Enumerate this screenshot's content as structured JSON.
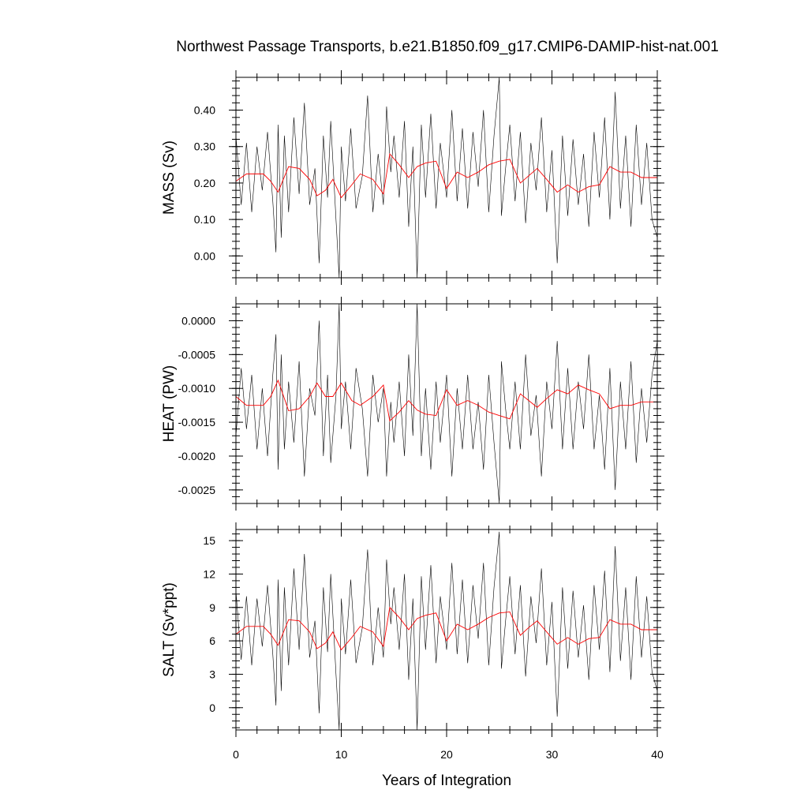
{
  "title": "Northwest Passage Transports, b.e21.B1850.f09_g17.CMIP6-DAMIP-hist-nat.001",
  "xlabel": "Years of Integration",
  "colors": {
    "raw": "#000000",
    "smoothed": "#ff0000"
  },
  "chart_data": [
    {
      "type": "line",
      "ylabel": "MASS (Sv)",
      "xlim": [
        0,
        40
      ],
      "ylim": [
        -0.06,
        0.49
      ],
      "xticks": [
        0,
        10,
        20,
        30,
        40
      ],
      "yticks": [
        0.0,
        0.1,
        0.2,
        0.3,
        0.4
      ],
      "ytick_labels": [
        "0.00",
        "0.10",
        "0.20",
        "0.30",
        "0.40"
      ],
      "series": [
        {
          "style": "thin-black",
          "x": [
            0,
            0.5,
            1,
            1.5,
            2,
            2.5,
            3,
            3.5,
            3.8,
            4,
            4.3,
            4.6,
            5,
            5.5,
            6,
            6.5,
            7,
            7.5,
            7.9,
            8.3,
            8.7,
            9,
            9.5,
            9.8,
            10,
            10.4,
            10.9,
            11.4,
            12,
            12.5,
            13,
            13.5,
            14,
            14.3,
            14.7,
            15,
            15.5,
            16,
            16.4,
            16.8,
            17.2,
            17.6,
            18,
            18.5,
            19,
            19.4,
            20,
            20.5,
            21,
            21.5,
            22,
            22.5,
            23,
            23.5,
            24,
            24.5,
            25,
            25.2,
            25.6,
            26,
            26.5,
            27,
            27.5,
            28,
            28.5,
            29,
            29.5,
            30,
            30.5,
            31,
            31.5,
            32,
            32.5,
            33,
            33.5,
            34,
            34.5,
            35,
            35.5,
            36,
            36.5,
            37,
            37.5,
            38,
            38.5,
            39,
            39.5,
            40
          ],
          "y": [
            0.33,
            0.14,
            0.31,
            0.12,
            0.3,
            0.18,
            0.34,
            0.15,
            0.01,
            0.36,
            0.05,
            0.33,
            0.12,
            0.38,
            0.17,
            0.42,
            0.14,
            0.24,
            -0.02,
            0.33,
            0.16,
            0.37,
            0.1,
            -0.06,
            0.3,
            0.15,
            0.35,
            0.13,
            0.22,
            0.44,
            0.12,
            0.28,
            0.14,
            0.41,
            0.23,
            0.33,
            0.16,
            0.37,
            0.08,
            0.3,
            -0.06,
            0.36,
            0.16,
            0.39,
            0.13,
            0.31,
            0.16,
            0.4,
            0.15,
            0.35,
            0.13,
            0.34,
            0.19,
            0.4,
            0.12,
            0.33,
            0.49,
            0.11,
            0.24,
            0.36,
            0.15,
            0.34,
            0.09,
            0.31,
            0.18,
            0.38,
            0.12,
            0.29,
            -0.02,
            0.33,
            0.11,
            0.32,
            0.14,
            0.28,
            0.08,
            0.34,
            0.16,
            0.38,
            0.1,
            0.45,
            0.13,
            0.33,
            0.08,
            0.36,
            0.14,
            0.31,
            0.1,
            0.05
          ]
        },
        {
          "style": "thin-red",
          "x": [
            0,
            1,
            2,
            2.6,
            3.3,
            4,
            5,
            6,
            7,
            7.7,
            8.5,
            9.2,
            10,
            11,
            11.8,
            13,
            14,
            14.6,
            15.5,
            16.4,
            17.2,
            18,
            19,
            20,
            21,
            22,
            23,
            24,
            25,
            26,
            27,
            27.8,
            28.6,
            29.5,
            30.5,
            31.5,
            32.5,
            33.5,
            34.5,
            35.5,
            36.5,
            37.5,
            38.5,
            39.5,
            40
          ],
          "y": [
            0.205,
            0.225,
            0.225,
            0.225,
            0.205,
            0.175,
            0.245,
            0.24,
            0.21,
            0.165,
            0.18,
            0.21,
            0.16,
            0.195,
            0.225,
            0.21,
            0.17,
            0.28,
            0.25,
            0.215,
            0.245,
            0.255,
            0.26,
            0.185,
            0.23,
            0.215,
            0.23,
            0.25,
            0.26,
            0.265,
            0.2,
            0.22,
            0.24,
            0.21,
            0.175,
            0.195,
            0.175,
            0.19,
            0.195,
            0.245,
            0.23,
            0.23,
            0.215,
            0.215,
            0.215
          ]
        }
      ]
    },
    {
      "type": "line",
      "ylabel": "HEAT (PW)",
      "xlim": [
        0,
        40
      ],
      "ylim": [
        -0.0027,
        0.00025
      ],
      "xticks": [
        0,
        10,
        20,
        30,
        40
      ],
      "yticks": [
        0.0,
        -0.0005,
        -0.001,
        -0.0015,
        -0.002,
        -0.0025
      ],
      "ytick_labels": [
        "0.0000",
        "-0.0005",
        "-0.0010",
        "-0.0015",
        "-0.0020",
        "-0.0025"
      ],
      "series": [
        {
          "style": "thin-black",
          "x": [
            0,
            0.5,
            1,
            1.5,
            2,
            2.5,
            3,
            3.5,
            3.8,
            4,
            4.3,
            4.6,
            5,
            5.5,
            6,
            6.5,
            7,
            7.5,
            7.9,
            8.3,
            8.7,
            9,
            9.5,
            9.8,
            10,
            10.4,
            10.9,
            11.4,
            12,
            12.5,
            13,
            13.5,
            14,
            14.3,
            14.7,
            15,
            15.5,
            16,
            16.4,
            16.8,
            17.2,
            17.6,
            18,
            18.5,
            19,
            19.4,
            20,
            20.5,
            21,
            21.5,
            22,
            22.5,
            23,
            23.5,
            24,
            24.5,
            25,
            25.2,
            25.6,
            26,
            26.5,
            27,
            27.5,
            28,
            28.5,
            29,
            29.5,
            30,
            30.5,
            31,
            31.5,
            32,
            32.5,
            33,
            33.5,
            34,
            34.5,
            35,
            35.5,
            36,
            36.5,
            37,
            37.5,
            38,
            38.5,
            39,
            39.5,
            40
          ],
          "y": [
            -0.0017,
            -0.0007,
            -0.0016,
            -0.0008,
            -0.0019,
            -0.001,
            -0.002,
            -0.0008,
            -0.0002,
            -0.0022,
            -0.0005,
            -0.0019,
            -0.0009,
            -0.0018,
            -0.0006,
            -0.0023,
            -0.001,
            -0.0014,
            0.0,
            -0.002,
            -0.0008,
            -0.0021,
            -0.0011,
            0.00025,
            -0.0016,
            -0.0009,
            -0.0019,
            -0.0007,
            -0.0013,
            -0.0023,
            -0.0008,
            -0.0015,
            -0.001,
            -0.0023,
            -0.0012,
            -0.0018,
            -0.0009,
            -0.002,
            -0.0005,
            -0.0017,
            0.00025,
            -0.002,
            -0.001,
            -0.0022,
            -0.0009,
            -0.0018,
            -0.0008,
            -0.0023,
            -0.001,
            -0.0019,
            -0.0008,
            -0.0019,
            -0.0012,
            -0.0022,
            -0.0008,
            -0.0018,
            -0.0027,
            -0.0006,
            -0.0013,
            -0.0019,
            -0.0009,
            -0.0019,
            -0.0005,
            -0.0017,
            -0.0011,
            -0.0023,
            -0.0009,
            -0.0016,
            -0.0003,
            -0.0019,
            -0.0007,
            -0.0019,
            -0.0009,
            -0.0016,
            -0.0005,
            -0.0019,
            -0.0011,
            -0.0022,
            -0.0007,
            -0.0025,
            -0.0009,
            -0.0019,
            -0.0006,
            -0.0021,
            -0.001,
            -0.0018,
            -0.0008,
            -0.0003
          ]
        },
        {
          "style": "thin-red",
          "x": [
            0,
            1,
            2,
            2.6,
            3.3,
            4,
            5,
            6,
            7,
            7.7,
            8.5,
            9.2,
            10,
            11,
            11.8,
            13,
            14,
            14.6,
            15.5,
            16.4,
            17.2,
            18,
            19,
            20,
            21,
            22,
            23,
            24,
            25,
            26,
            27,
            27.8,
            28.6,
            29.5,
            30.5,
            31.5,
            32.5,
            33.5,
            34.5,
            35.5,
            36.5,
            37.5,
            38.5,
            39.5,
            40
          ],
          "y": [
            -0.00112,
            -0.00125,
            -0.00125,
            -0.00125,
            -0.00112,
            -0.00088,
            -0.00133,
            -0.0013,
            -0.00112,
            -0.00092,
            -0.00112,
            -0.00112,
            -0.00092,
            -0.00118,
            -0.00125,
            -0.00112,
            -0.00095,
            -0.00148,
            -0.00135,
            -0.00118,
            -0.00132,
            -0.00138,
            -0.0014,
            -0.00102,
            -0.00125,
            -0.00118,
            -0.00125,
            -0.00135,
            -0.0014,
            -0.00145,
            -0.00108,
            -0.00118,
            -0.00128,
            -0.00115,
            -0.00102,
            -0.00108,
            -0.00095,
            -0.00102,
            -0.00108,
            -0.0013,
            -0.00125,
            -0.00125,
            -0.0012,
            -0.0012,
            -0.0012
          ]
        }
      ]
    },
    {
      "type": "line",
      "ylabel": "SALT (Sv*ppt)",
      "xlim": [
        0,
        40
      ],
      "ylim": [
        -2,
        16
      ],
      "xticks": [
        0,
        10,
        20,
        30,
        40
      ],
      "yticks": [
        0,
        3,
        6,
        9,
        12,
        15
      ],
      "ytick_labels": [
        "0",
        "3",
        "6",
        "9",
        "12",
        "15"
      ],
      "series": [
        {
          "style": "thin-black",
          "x": [
            0,
            0.5,
            1,
            1.5,
            2,
            2.5,
            3,
            3.5,
            3.8,
            4,
            4.3,
            4.6,
            5,
            5.5,
            6,
            6.5,
            7,
            7.5,
            7.9,
            8.3,
            8.7,
            9,
            9.5,
            9.8,
            10,
            10.4,
            10.9,
            11.4,
            12,
            12.5,
            13,
            13.5,
            14,
            14.3,
            14.7,
            15,
            15.5,
            16,
            16.4,
            16.8,
            17.2,
            17.6,
            18,
            18.5,
            19,
            19.4,
            20,
            20.5,
            21,
            21.5,
            22,
            22.5,
            23,
            23.5,
            24,
            24.5,
            25,
            25.2,
            25.6,
            26,
            26.5,
            27,
            27.5,
            28,
            28.5,
            29,
            29.5,
            30,
            30.5,
            31,
            31.5,
            32,
            32.5,
            33,
            33.5,
            34,
            34.5,
            35,
            35.5,
            36,
            36.5,
            37,
            37.5,
            38,
            38.5,
            39,
            39.5,
            40
          ],
          "y": [
            10.5,
            4.3,
            10.0,
            3.8,
            9.8,
            5.5,
            11.0,
            4.8,
            0.2,
            11.5,
            1.5,
            10.8,
            3.8,
            12.5,
            5.2,
            13.8,
            4.5,
            7.8,
            -0.5,
            10.8,
            5.0,
            12.0,
            3.0,
            -2.0,
            9.8,
            4.8,
            11.5,
            4.0,
            7.2,
            14.2,
            3.8,
            9.0,
            4.5,
            13.3,
            7.5,
            10.8,
            5.2,
            12.0,
            2.5,
            9.8,
            -2.0,
            11.8,
            5.2,
            12.8,
            4.0,
            10.0,
            5.2,
            13.0,
            4.8,
            11.5,
            4.0,
            11.0,
            6.2,
            13.0,
            3.8,
            10.8,
            15.8,
            3.5,
            7.8,
            11.8,
            4.8,
            11.0,
            2.8,
            10.0,
            5.8,
            12.5,
            3.8,
            9.5,
            -0.8,
            10.8,
            3.5,
            10.5,
            4.5,
            9.2,
            2.5,
            11.0,
            5.2,
            12.3,
            3.2,
            14.5,
            4.2,
            10.8,
            2.5,
            11.8,
            4.5,
            10.0,
            3.2,
            1.5
          ]
        },
        {
          "style": "thin-red",
          "x": [
            0,
            1,
            2,
            2.6,
            3.3,
            4,
            5,
            6,
            7,
            7.7,
            8.5,
            9.2,
            10,
            11,
            11.8,
            13,
            14,
            14.6,
            15.5,
            16.4,
            17.2,
            18,
            19,
            20,
            21,
            22,
            23,
            24,
            25,
            26,
            27,
            27.8,
            28.6,
            29.5,
            30.5,
            31.5,
            32.5,
            33.5,
            34.5,
            35.5,
            36.5,
            37.5,
            38.5,
            39.5,
            40
          ],
          "y": [
            6.6,
            7.3,
            7.3,
            7.3,
            6.6,
            5.6,
            7.9,
            7.8,
            6.8,
            5.3,
            5.8,
            6.8,
            5.2,
            6.3,
            7.3,
            6.8,
            5.5,
            9.0,
            8.1,
            7.0,
            8.0,
            8.3,
            8.5,
            6.0,
            7.5,
            7.0,
            7.5,
            8.1,
            8.5,
            8.6,
            6.5,
            7.2,
            7.8,
            6.8,
            5.7,
            6.3,
            5.7,
            6.2,
            6.3,
            7.9,
            7.5,
            7.5,
            7.0,
            7.0,
            7.0
          ]
        }
      ]
    }
  ]
}
